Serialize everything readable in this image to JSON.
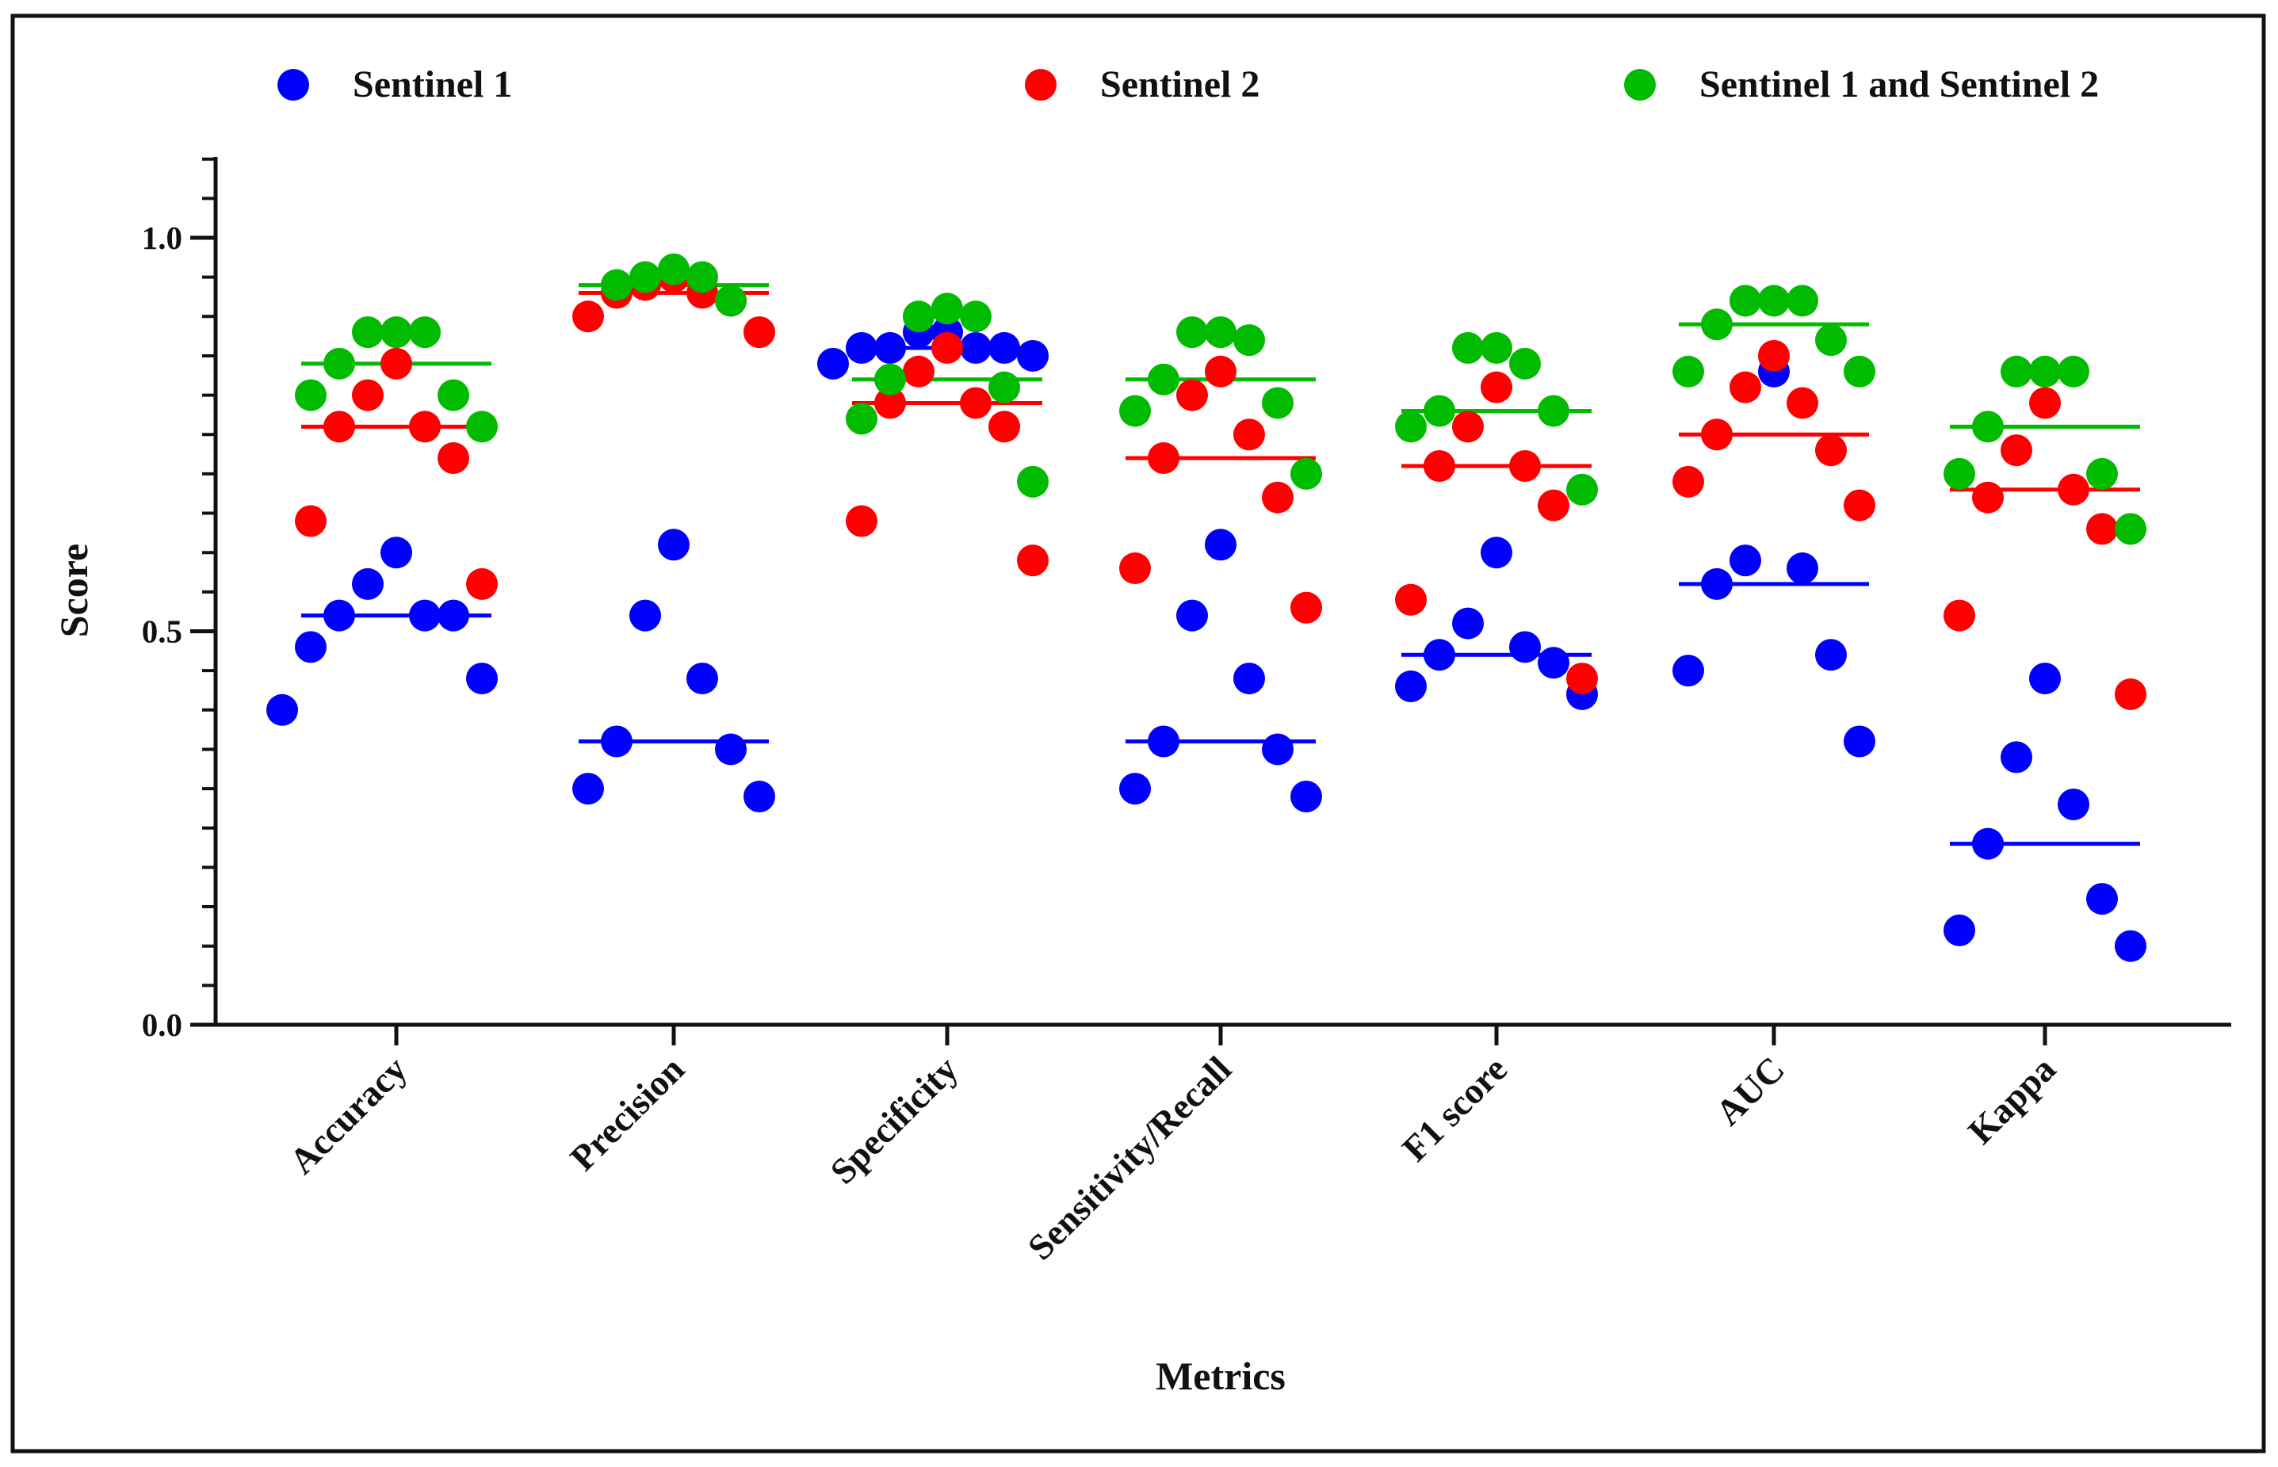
{
  "chart_data": {
    "type": "scatter",
    "subtype": "strip-with-mean",
    "title": "",
    "xlabel": "Metrics",
    "ylabel": "Score",
    "ylim": [
      0,
      1.1
    ],
    "yticks": [
      {
        "value": 0.0,
        "label": "0.0"
      },
      {
        "value": 0.5,
        "label": "0.5"
      },
      {
        "value": 1.0,
        "label": "1.0"
      }
    ],
    "minor_ytick_step": 0.05,
    "legend_position": "top",
    "categories": [
      "Accuracy",
      "Precision",
      "Specificity",
      "Sensitivity/Recall",
      "F1 score",
      "AUC",
      "Kappa"
    ],
    "series": [
      {
        "name": "Sentinel 1",
        "color": "#0000ff",
        "means": [
          0.52,
          0.36,
          0.86,
          0.36,
          0.47,
          0.56,
          0.23
        ],
        "points": [
          [
            0.6,
            0.56,
            0.52,
            0.52,
            0.52,
            0.48,
            0.44,
            0.4
          ],
          [
            0.61,
            0.52,
            0.44,
            0.36,
            0.35,
            0.3,
            0.29
          ],
          [
            0.88,
            0.88,
            0.86,
            0.86,
            0.86,
            0.86,
            0.85,
            0.84
          ],
          [
            0.61,
            0.52,
            0.44,
            0.36,
            0.35,
            0.3,
            0.29
          ],
          [
            0.6,
            0.51,
            0.48,
            0.47,
            0.46,
            0.43,
            0.42
          ],
          [
            0.83,
            0.59,
            0.58,
            0.56,
            0.47,
            0.45,
            0.36
          ],
          [
            0.44,
            0.34,
            0.28,
            0.23,
            0.16,
            0.12,
            0.1
          ]
        ]
      },
      {
        "name": "Sentinel 2",
        "color": "#ff0000",
        "means": [
          0.76,
          0.93,
          0.79,
          0.72,
          0.71,
          0.75,
          0.68
        ],
        "points": [
          [
            0.84,
            0.8,
            0.76,
            0.76,
            0.72,
            0.64,
            0.56
          ],
          [
            0.95,
            0.94,
            0.93,
            0.93,
            0.92,
            0.9,
            0.88
          ],
          [
            0.86,
            0.83,
            0.79,
            0.79,
            0.76,
            0.64,
            0.59
          ],
          [
            0.83,
            0.8,
            0.75,
            0.72,
            0.67,
            0.58,
            0.53
          ],
          [
            0.81,
            0.76,
            0.71,
            0.71,
            0.66,
            0.54,
            0.44
          ],
          [
            0.85,
            0.81,
            0.79,
            0.75,
            0.73,
            0.69,
            0.66
          ],
          [
            0.79,
            0.73,
            0.68,
            0.67,
            0.63,
            0.52,
            0.42
          ]
        ]
      },
      {
        "name": "Sentinel 1 and Sentinel 2",
        "color": "#00bb00",
        "means": [
          0.84,
          0.94,
          0.82,
          0.82,
          0.78,
          0.89,
          0.76
        ],
        "points": [
          [
            0.88,
            0.88,
            0.88,
            0.84,
            0.8,
            0.8,
            0.76
          ],
          [
            0.96,
            0.95,
            0.95,
            0.94,
            0.92
          ],
          [
            0.91,
            0.9,
            0.9,
            0.82,
            0.81,
            0.77,
            0.69
          ],
          [
            0.88,
            0.88,
            0.87,
            0.82,
            0.79,
            0.78,
            0.7
          ],
          [
            0.86,
            0.86,
            0.84,
            0.78,
            0.78,
            0.76,
            0.68
          ],
          [
            0.92,
            0.92,
            0.92,
            0.89,
            0.87,
            0.83,
            0.83
          ],
          [
            0.83,
            0.83,
            0.83,
            0.76,
            0.7,
            0.7,
            0.63
          ]
        ]
      }
    ]
  }
}
